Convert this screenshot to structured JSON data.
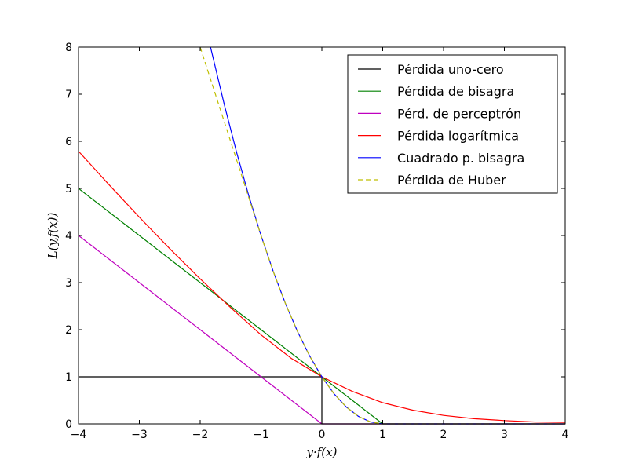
{
  "chart_data": {
    "type": "line",
    "title": "",
    "xlabel": "y·f(x)",
    "ylabel": "L(y,f(x))",
    "xlim": [
      -4,
      4
    ],
    "ylim": [
      0,
      8
    ],
    "xticks": [
      -4,
      -3,
      -2,
      -1,
      0,
      1,
      2,
      3,
      4
    ],
    "xtick_labels": [
      "−4",
      "−3",
      "−2",
      "−1",
      "0",
      "1",
      "2",
      "3",
      "4"
    ],
    "yticks": [
      0,
      1,
      2,
      3,
      4,
      5,
      6,
      7,
      8
    ],
    "ytick_labels": [
      "0",
      "1",
      "2",
      "3",
      "4",
      "5",
      "6",
      "7",
      "8"
    ],
    "grid": false,
    "legend_position": "top-right",
    "series": [
      {
        "name": "Pérdida uno-cero",
        "color": "#000000",
        "dash": "solid",
        "x": [
          -4,
          0,
          0,
          4
        ],
        "y": [
          1,
          1,
          0,
          0
        ]
      },
      {
        "name": "Pérdida de bisagra",
        "color": "#008000",
        "dash": "solid",
        "x": [
          -4,
          -3,
          -2,
          -1,
          0,
          1,
          2,
          3,
          4
        ],
        "y": [
          5,
          4,
          3,
          2,
          1,
          0,
          0,
          0,
          0
        ]
      },
      {
        "name": "Pérd. de perceptrón",
        "color": "#bf00bf",
        "dash": "solid",
        "x": [
          -4,
          -3,
          -2,
          -1,
          0,
          1,
          2,
          3,
          4
        ],
        "y": [
          4,
          3,
          2,
          1,
          0,
          0,
          0,
          0,
          0
        ]
      },
      {
        "name": "Pérdida logarítmica",
        "color": "#ff0000",
        "dash": "solid",
        "x": [
          -4,
          -3.5,
          -3,
          -2.5,
          -2,
          -1.5,
          -1,
          -0.5,
          0,
          0.5,
          1,
          1.5,
          2,
          2.5,
          3,
          3.5,
          4
        ],
        "y": [
          5.79,
          5.08,
          4.39,
          3.72,
          3.08,
          2.47,
          1.89,
          1.39,
          1.0,
          0.69,
          0.45,
          0.29,
          0.18,
          0.11,
          0.07,
          0.04,
          0.03
        ]
      },
      {
        "name": "Cuadrado p. bisagra",
        "color": "#0000ff",
        "dash": "solid",
        "x": [
          -1.83,
          -1.6,
          -1.4,
          -1.2,
          -1.0,
          -0.8,
          -0.6,
          -0.4,
          -0.2,
          0,
          0.2,
          0.4,
          0.6,
          0.8,
          1.0,
          2,
          3,
          4
        ],
        "y": [
          8.0,
          6.76,
          5.76,
          4.84,
          4.0,
          3.24,
          2.56,
          1.96,
          1.44,
          1.0,
          0.64,
          0.36,
          0.16,
          0.04,
          0,
          0,
          0,
          0
        ]
      },
      {
        "name": "Pérdida de Huber",
        "color": "#bfbf00",
        "dash": "dashed",
        "x": [
          -2,
          -1.8,
          -1.6,
          -1.4,
          -1.2,
          -1.0,
          -0.8,
          -0.6,
          -0.4,
          -0.2,
          0,
          0.2,
          0.4,
          0.6,
          0.8,
          1.0,
          2,
          3,
          4
        ],
        "y": [
          8.0,
          7.2,
          6.4,
          5.6,
          4.8,
          4.0,
          3.24,
          2.56,
          1.96,
          1.44,
          1.0,
          0.64,
          0.36,
          0.16,
          0.04,
          0,
          0,
          0,
          0
        ]
      }
    ]
  }
}
